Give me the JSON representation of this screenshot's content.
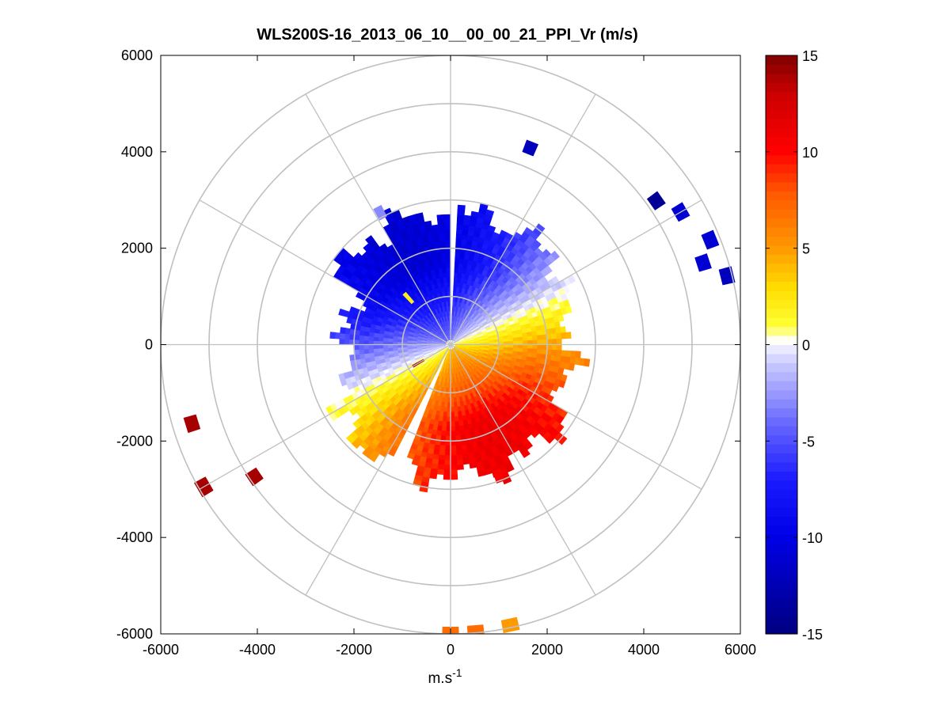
{
  "chart_data": {
    "type": "heatmap",
    "subtype": "polar-ppi-scan",
    "title": "WLS200S-16_2013_06_10__00_00_21_PPI_Vr (m/s)",
    "xlabel": "m.s",
    "xlabel_superscript": "-1",
    "ylabel": "",
    "xlim": [
      -6000,
      6000
    ],
    "ylim": [
      -6000,
      6000
    ],
    "xticks": [
      -6000,
      -4000,
      -2000,
      0,
      2000,
      4000,
      6000
    ],
    "yticks": [
      -6000,
      -4000,
      -2000,
      0,
      2000,
      4000,
      6000
    ],
    "xtick_labels": [
      "-6000",
      "-4000",
      "-2000",
      "0",
      "2000",
      "4000",
      "6000"
    ],
    "ytick_labels": [
      "-6000",
      "-4000",
      "-2000",
      "0",
      "2000",
      "4000",
      "6000"
    ],
    "polar_grid": {
      "ring_radii": [
        1000,
        2000,
        3000,
        4000,
        5000,
        6000
      ],
      "spoke_angles_deg": [
        0,
        30,
        60,
        90,
        120,
        150,
        180,
        210,
        240,
        270,
        300,
        330
      ]
    },
    "colorbar": {
      "min": -15,
      "max": 15,
      "ticks": [
        -15,
        -10,
        -5,
        0,
        5,
        10,
        15
      ],
      "tick_labels": [
        "-15",
        "-10",
        "-5",
        "0",
        "5",
        "10",
        "15"
      ],
      "stops": [
        {
          "value": -15,
          "color": "#000080"
        },
        {
          "value": -10,
          "color": "#0000e6"
        },
        {
          "value": -7,
          "color": "#1a1aff"
        },
        {
          "value": -4,
          "color": "#6a6aff"
        },
        {
          "value": -1,
          "color": "#c8c8ff"
        },
        {
          "value": -0.2,
          "color": "#ebebff"
        },
        {
          "value": 0.2,
          "color": "#ffffff"
        },
        {
          "value": 1,
          "color": "#ffff33"
        },
        {
          "value": 3,
          "color": "#ffdd00"
        },
        {
          "value": 5,
          "color": "#ff9900"
        },
        {
          "value": 8,
          "color": "#ff5500"
        },
        {
          "value": 10,
          "color": "#ff0000"
        },
        {
          "value": 13,
          "color": "#cc0000"
        },
        {
          "value": 15,
          "color": "#800000"
        }
      ]
    },
    "wind_field": {
      "max_range_m": 2700,
      "max_speed_ms": 11,
      "flow_toward_bearing_deg": 155,
      "gap_bearing_range_deg": [
        -1,
        3
      ],
      "gap2_bearing_range_deg": [
        202,
        206
      ]
    },
    "range_gate_m": 100,
    "azimuth_step_deg": 3,
    "far_returns": [
      {
        "bearing_deg": 22,
        "range_m": 4400,
        "velocity_ms": -12
      },
      {
        "bearing_deg": 55,
        "range_m": 5200,
        "velocity_ms": -14
      },
      {
        "bearing_deg": 60,
        "range_m": 5500,
        "velocity_ms": -11
      },
      {
        "bearing_deg": 68,
        "range_m": 5800,
        "velocity_ms": -11
      },
      {
        "bearing_deg": 72,
        "range_m": 5500,
        "velocity_ms": -11
      },
      {
        "bearing_deg": 76,
        "range_m": 5900,
        "velocity_ms": -12
      },
      {
        "bearing_deg": 253,
        "range_m": 5600,
        "velocity_ms": 14
      },
      {
        "bearing_deg": 240,
        "range_m": 5900,
        "velocity_ms": 14
      },
      {
        "bearing_deg": 236,
        "range_m": 4900,
        "velocity_ms": 14
      },
      {
        "bearing_deg": 168,
        "range_m": 5950,
        "velocity_ms": 5
      },
      {
        "bearing_deg": 175,
        "range_m": 5980,
        "velocity_ms": 7
      },
      {
        "bearing_deg": 180,
        "range_m": 5990,
        "velocity_ms": 7
      },
      {
        "bearing_deg": 332,
        "range_m": 3100,
        "velocity_ms": -3
      },
      {
        "bearing_deg": 318,
        "range_m": 1300,
        "velocity_ms": 2
      },
      {
        "bearing_deg": 240,
        "range_m": 770,
        "velocity_ms": 14
      },
      {
        "bearing_deg": 160,
        "range_m": 2900,
        "velocity_ms": 10
      }
    ]
  }
}
